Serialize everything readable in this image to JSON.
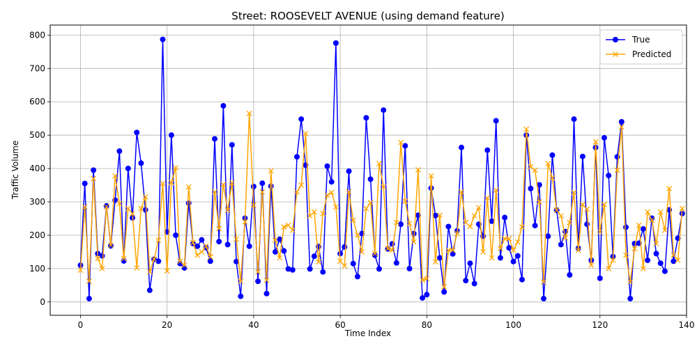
{
  "chart_data": {
    "type": "line",
    "title": "Street: ROOSEVELT AVENUE (using demand feature)",
    "xlabel": "Time Index",
    "ylabel": "Traffic Volume",
    "xlim": [
      -7,
      140
    ],
    "ylim": [
      -40,
      830
    ],
    "xticks": [
      0,
      20,
      40,
      60,
      80,
      100,
      120,
      140
    ],
    "yticks": [
      0,
      100,
      200,
      300,
      400,
      500,
      600,
      700,
      800
    ],
    "grid": true,
    "legend_position": "top-right",
    "series": [
      {
        "name": "True",
        "color": "#0000ff",
        "marker": "circle",
        "values": [
          110,
          355,
          10,
          395,
          145,
          138,
          288,
          168,
          305,
          452,
          123,
          400,
          252,
          508,
          416,
          276,
          35,
          128,
          122,
          787,
          210,
          500,
          200,
          115,
          102,
          296,
          175,
          167,
          186,
          163,
          122,
          489,
          181,
          588,
          172,
          471,
          121,
          17,
          251,
          167,
          346,
          62,
          356,
          25,
          347,
          150,
          188,
          153,
          99,
          96,
          435,
          548,
          410,
          99,
          137,
          166,
          90,
          407,
          360,
          776,
          145,
          165,
          392,
          115,
          76,
          205,
          552,
          368,
          140,
          99,
          575,
          159,
          174,
          117,
          233,
          468,
          100,
          205,
          260,
          12,
          22,
          341,
          259,
          132,
          30,
          226,
          144,
          213,
          463,
          64,
          116,
          55,
          233,
          197,
          455,
          242,
          543,
          132,
          253,
          162,
          121,
          138,
          67,
          500,
          340,
          229,
          351,
          10,
          197,
          440,
          275,
          172,
          211,
          81,
          548,
          161,
          436,
          233,
          125,
          463,
          71,
          492,
          379,
          136,
          435,
          540,
          224,
          10,
          175,
          176,
          219,
          125,
          251,
          145,
          116,
          92,
          276,
          122,
          191,
          265
        ]
      },
      {
        "name": "Predicted",
        "color": "#ffa500",
        "marker": "x",
        "values": [
          95,
          285,
          62,
          370,
          130,
          100,
          285,
          170,
          378,
          295,
          130,
          280,
          265,
          102,
          280,
          315,
          90,
          128,
          185,
          355,
          93,
          358,
          402,
          122,
          110,
          345,
          178,
          140,
          150,
          168,
          135,
          330,
          220,
          352,
          275,
          357,
          188,
          62,
          240,
          565,
          290,
          90,
          330,
          65,
          393,
          185,
          132,
          225,
          230,
          215,
          330,
          350,
          505,
          258,
          270,
          120,
          265,
          320,
          328,
          285,
          122,
          108,
          330,
          245,
          200,
          150,
          280,
          298,
          145,
          415,
          345,
          160,
          155,
          238,
          478,
          302,
          235,
          180,
          396,
          65,
          70,
          378,
          120,
          260,
          45,
          155,
          155,
          205,
          330,
          238,
          226,
          258,
          283,
          150,
          312,
          132,
          335,
          160,
          190,
          190,
          155,
          180,
          225,
          518,
          405,
          395,
          300,
          60,
          415,
          372,
          275,
          258,
          192,
          238,
          328,
          155,
          292,
          278,
          110,
          480,
          210,
          292,
          100,
          125,
          395,
          525,
          140,
          60,
          160,
          230,
          100,
          270,
          245,
          175,
          270,
          215,
          340,
          140,
          125,
          280
        ]
      }
    ]
  }
}
